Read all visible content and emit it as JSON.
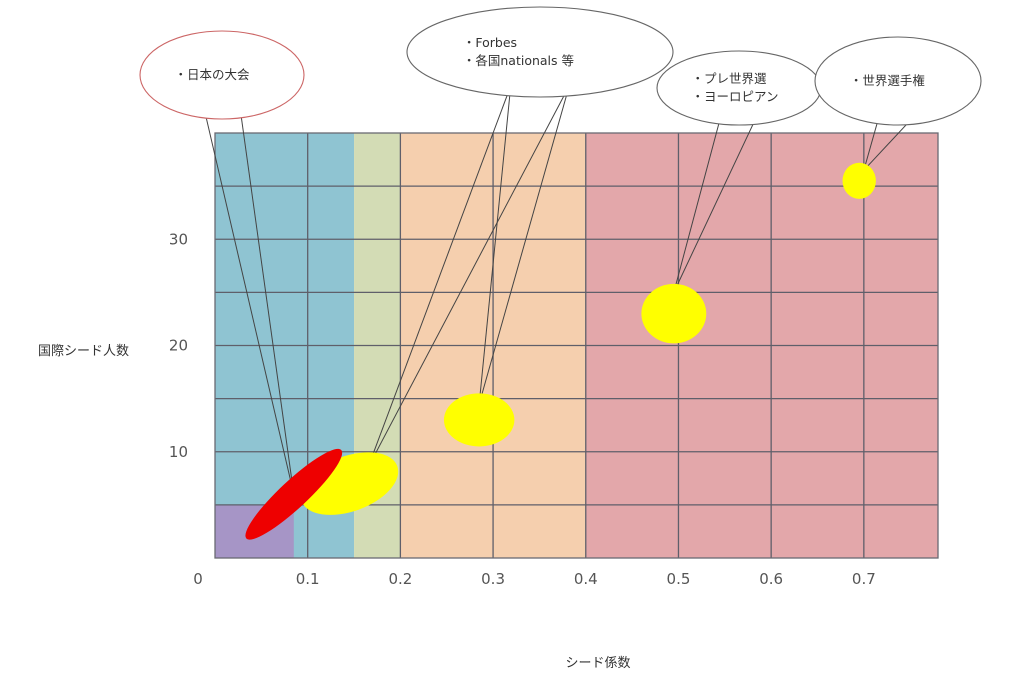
{
  "chart_data": {
    "type": "scatter",
    "title": "",
    "xlabel": "シード係数",
    "ylabel": "国際シード人数",
    "xlim": [
      0,
      0.78
    ],
    "ylim": [
      0,
      40
    ],
    "x_ticks": [
      "0.1",
      "0.2",
      "0.3",
      "0.4",
      "0.5",
      "0.6",
      "0.7"
    ],
    "x_tick_values": [
      0.1,
      0.2,
      0.3,
      0.4,
      0.5,
      0.6,
      0.7
    ],
    "y_ticks": [
      "10",
      "20",
      "30"
    ],
    "y_tick_values": [
      10,
      20,
      30
    ],
    "origin_label": "0",
    "grid": true,
    "x_grid": [
      0.1,
      0.2,
      0.3,
      0.4,
      0.5,
      0.6,
      0.7
    ],
    "y_grid": [
      5,
      10,
      15,
      20,
      25,
      30,
      35
    ],
    "bands": [
      {
        "x0": 0,
        "x1": 0.15,
        "color": "#8fc4d2"
      },
      {
        "x0": 0.15,
        "x1": 0.2,
        "color": "#d3dcb5"
      },
      {
        "x0": 0.2,
        "x1": 0.4,
        "color": "#f5cfae"
      },
      {
        "x0": 0.4,
        "x1": 0.78,
        "color": "#e3a7aa"
      }
    ],
    "corner_box": {
      "x0": 0,
      "x1": 0.085,
      "y0": 0,
      "y1": 5,
      "color": "#a695c6"
    },
    "regions": [
      {
        "cx": 0.145,
        "cy": 7,
        "rx": 0.055,
        "ry": 2.6,
        "angle": -0.35,
        "color": "#ffff00"
      },
      {
        "cx": 0.085,
        "cy": 6,
        "rx": 0.07,
        "ry": 1.3,
        "angle": -0.75,
        "color": "#ee0000"
      },
      {
        "cx": 0.285,
        "cy": 13,
        "rx": 0.038,
        "ry": 2.5,
        "angle": 0,
        "color": "#ffff00"
      },
      {
        "cx": 0.495,
        "cy": 23,
        "rx": 0.035,
        "ry": 2.8,
        "angle": 0,
        "color": "#ffff00"
      },
      {
        "cx": 0.695,
        "cy": 35.5,
        "rx": 0.018,
        "ry": 1.7,
        "angle": 0,
        "color": "#ffff00"
      }
    ],
    "annotations": [
      {
        "lines": [
          "・日本の大会"
        ],
        "targets": [
          [
            0.085,
            6
          ]
        ],
        "edge_color": "#cc6666"
      },
      {
        "lines": [
          "・Forbes",
          "・各国nationals 等"
        ],
        "targets": [
          [
            0.165,
            8.5
          ],
          [
            0.285,
            14.5
          ]
        ],
        "edge_color": "#666666"
      },
      {
        "lines": [
          "・プレ世界選",
          "・ヨーロピアン"
        ],
        "targets": [
          [
            0.495,
            25
          ]
        ],
        "edge_color": "#666666"
      },
      {
        "lines": [
          "・世界選手権"
        ],
        "targets": [
          [
            0.7,
            36.5
          ]
        ],
        "edge_color": "#666666"
      }
    ]
  }
}
